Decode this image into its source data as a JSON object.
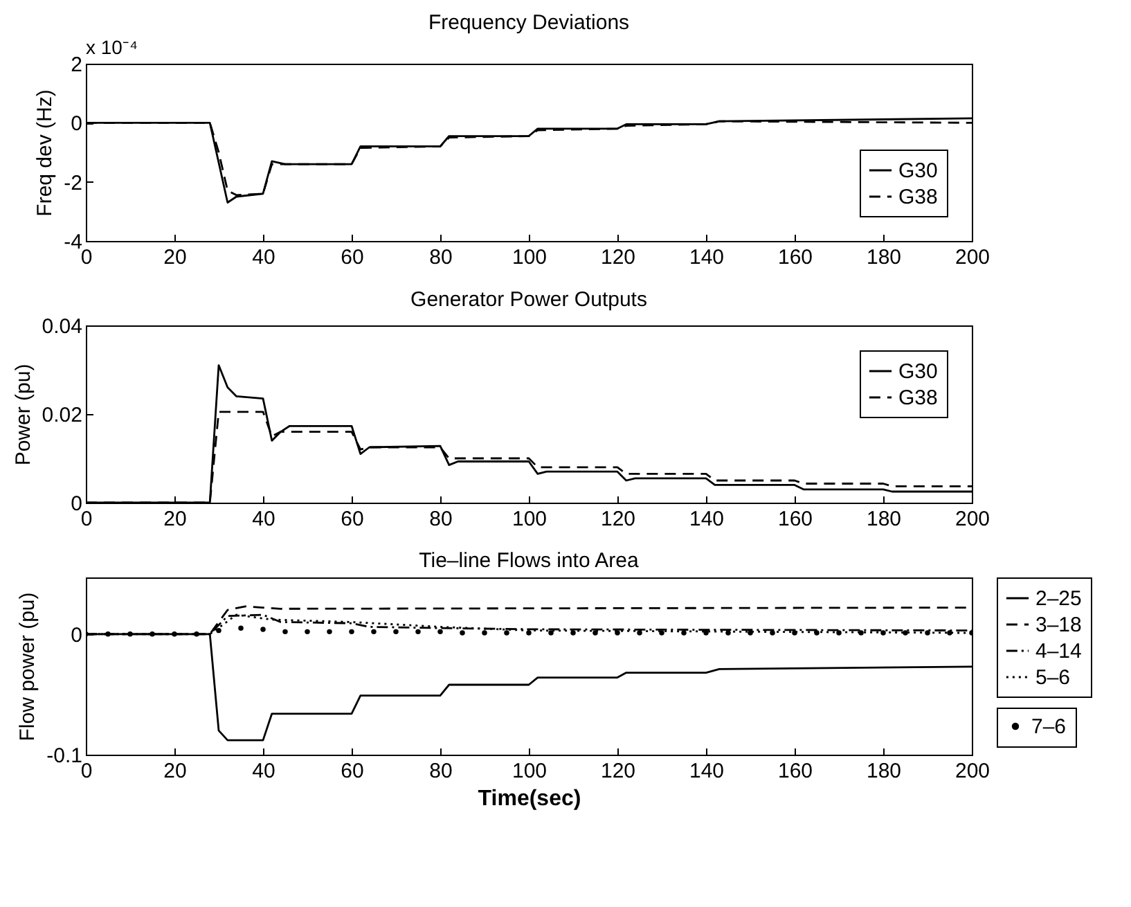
{
  "chart_data": [
    {
      "type": "line",
      "title": "Frequency Deviations",
      "ylabel": "Freq dev (Hz)",
      "annotations": [
        "x 10⁻⁴"
      ],
      "xlim": [
        0,
        200
      ],
      "xticks": [
        0,
        20,
        40,
        60,
        80,
        100,
        120,
        140,
        160,
        180,
        200
      ],
      "ylim": [
        -4,
        2
      ],
      "yticks": [
        -4,
        -2,
        0,
        2
      ],
      "grid": false,
      "legend": "bottom right",
      "series": [
        {
          "name": "G30",
          "color": "#000000",
          "line_style": "solid",
          "x": [
            0,
            28,
            32,
            34,
            40,
            42,
            45,
            60,
            62,
            80,
            82,
            100,
            102,
            120,
            122,
            140,
            143,
            200
          ],
          "values": [
            0,
            0,
            -2.7,
            -2.5,
            -2.4,
            -1.3,
            -1.4,
            -1.4,
            -0.8,
            -0.8,
            -0.45,
            -0.45,
            -0.2,
            -0.2,
            -0.05,
            -0.05,
            0.05,
            0.15
          ]
        },
        {
          "name": "G38",
          "color": "#000000",
          "line_style": "dashed",
          "x": [
            0,
            28,
            30,
            32,
            34,
            40,
            42,
            60,
            62,
            80,
            82,
            100,
            102,
            120,
            122,
            140,
            143,
            200
          ],
          "values": [
            0,
            0,
            -1.0,
            -2.3,
            -2.45,
            -2.4,
            -1.4,
            -1.4,
            -0.85,
            -0.8,
            -0.5,
            -0.45,
            -0.25,
            -0.2,
            -0.1,
            -0.05,
            0.05,
            0.0
          ]
        }
      ]
    },
    {
      "type": "line",
      "title": "Generator Power Outputs",
      "ylabel": "Power (pu)",
      "xlim": [
        0,
        200
      ],
      "xticks": [
        0,
        20,
        40,
        60,
        80,
        100,
        120,
        140,
        160,
        180,
        200
      ],
      "ylim": [
        0,
        0.04
      ],
      "yticks": [
        0,
        0.02,
        0.04
      ],
      "grid": false,
      "legend": "top right",
      "series": [
        {
          "name": "G30",
          "color": "#000000",
          "line_style": "solid",
          "x": [
            0,
            28,
            30,
            32,
            34,
            40,
            42,
            44,
            46,
            60,
            62,
            64,
            80,
            82,
            84,
            100,
            102,
            104,
            120,
            122,
            124,
            140,
            142,
            160,
            162,
            180,
            182,
            200
          ],
          "values": [
            0,
            0,
            0.031,
            0.026,
            0.024,
            0.0235,
            0.014,
            0.016,
            0.0173,
            0.0173,
            0.011,
            0.0125,
            0.0128,
            0.0085,
            0.0093,
            0.0093,
            0.0065,
            0.007,
            0.007,
            0.005,
            0.0055,
            0.0055,
            0.004,
            0.004,
            0.003,
            0.003,
            0.0025,
            0.0025
          ]
        },
        {
          "name": "G38",
          "color": "#000000",
          "line_style": "dashed",
          "x": [
            0,
            28,
            30,
            40,
            42,
            44,
            60,
            62,
            64,
            80,
            82,
            100,
            102,
            120,
            122,
            140,
            142,
            160,
            162,
            180,
            182,
            200
          ],
          "values": [
            0,
            0,
            0.0205,
            0.0205,
            0.015,
            0.016,
            0.016,
            0.012,
            0.0125,
            0.0125,
            0.01,
            0.01,
            0.008,
            0.008,
            0.0065,
            0.0065,
            0.005,
            0.005,
            0.0043,
            0.0043,
            0.0037,
            0.0037
          ]
        }
      ]
    },
    {
      "type": "line",
      "title": "Tie–line Flows into Area",
      "xlabel": "Time(sec)",
      "ylabel": "Flow power (pu)",
      "xlim": [
        0,
        200
      ],
      "xticks": [
        0,
        20,
        40,
        60,
        80,
        100,
        120,
        140,
        160,
        180,
        200
      ],
      "ylim": [
        -0.1,
        0.047
      ],
      "yticks": [
        -0.1,
        0
      ],
      "grid": false,
      "legend": "right",
      "series": [
        {
          "name": "2–25",
          "color": "#000000",
          "line_style": "solid",
          "x": [
            0,
            28,
            30,
            32,
            40,
            42,
            60,
            62,
            80,
            82,
            100,
            102,
            120,
            122,
            140,
            143,
            200
          ],
          "values": [
            0,
            0,
            -0.08,
            -0.088,
            -0.088,
            -0.066,
            -0.066,
            -0.051,
            -0.051,
            -0.042,
            -0.042,
            -0.036,
            -0.036,
            -0.032,
            -0.032,
            -0.029,
            -0.027
          ]
        },
        {
          "name": "3–18",
          "color": "#000000",
          "line_style": "dashed",
          "x": [
            0,
            28,
            32,
            36,
            40,
            44,
            200
          ],
          "values": [
            0,
            0,
            0.02,
            0.023,
            0.022,
            0.021,
            0.022
          ]
        },
        {
          "name": "4–14",
          "color": "#000000",
          "line_style": "dashdot",
          "x": [
            0,
            28,
            32,
            40,
            44,
            60,
            64,
            80,
            100,
            200
          ],
          "values": [
            0,
            0,
            0.015,
            0.016,
            0.01,
            0.009,
            0.006,
            0.005,
            0.004,
            0.003
          ]
        },
        {
          "name": "5–6",
          "color": "#000000",
          "line_style": "dotted",
          "x": [
            0,
            28,
            34,
            42,
            60,
            80,
            100,
            200
          ],
          "values": [
            0,
            0,
            0.016,
            0.012,
            0.01,
            0.006,
            0.003,
            0.001
          ]
        },
        {
          "name": "7–6",
          "type": "scatter",
          "color": "#000000",
          "x": [
            0,
            5,
            10,
            15,
            20,
            25,
            30,
            35,
            40,
            45,
            50,
            55,
            60,
            65,
            70,
            75,
            80,
            85,
            90,
            95,
            100,
            105,
            110,
            115,
            120,
            125,
            130,
            135,
            140,
            145,
            150,
            155,
            160,
            165,
            170,
            175,
            180,
            185,
            190,
            195,
            200
          ],
          "values": [
            0,
            0,
            0,
            0,
            0,
            0,
            0.003,
            0.005,
            0.004,
            0.002,
            0.002,
            0.002,
            0.002,
            0.002,
            0.002,
            0.002,
            0.002,
            0.001,
            0.001,
            0.001,
            0.001,
            0.001,
            0.001,
            0.001,
            0.001,
            0.001,
            0.001,
            0.001,
            0.001,
            0.001,
            0.001,
            0.001,
            0.001,
            0.001,
            0.001,
            0.001,
            0.001,
            0.001,
            0.001,
            0.001,
            0.001
          ]
        }
      ]
    }
  ]
}
